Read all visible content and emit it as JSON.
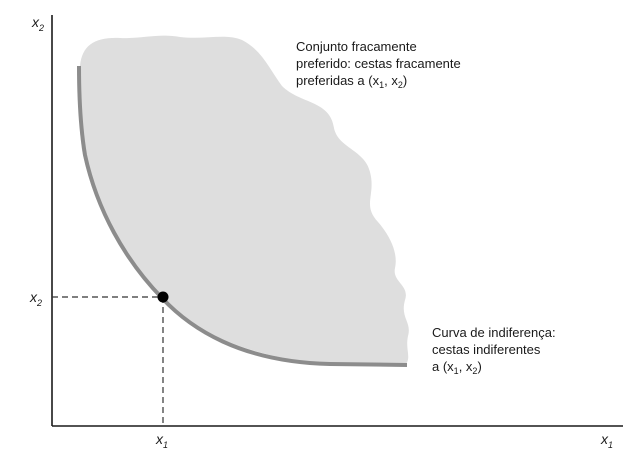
{
  "axes": {
    "y_name": "x",
    "y_sub": "2",
    "x_name": "x",
    "x_sub": "1"
  },
  "ticks": {
    "y_name": "x",
    "y_sub": "2",
    "x_name": "x",
    "x_sub": "1"
  },
  "preferred_set": {
    "line1": "Conjunto fracamente",
    "line2": "preferido: cestas fracamente",
    "line3_pre": "preferidas a (x",
    "line3_sub1": "1",
    "line3_mid": ", x",
    "line3_sub2": "2",
    "line3_post": ")"
  },
  "indifference_curve": {
    "line1": "Curva de indiferença:",
    "line2": "cestas indiferentes",
    "line3_pre": "a (x",
    "line3_sub1": "1",
    "line3_mid": ", x",
    "line3_sub2": "2",
    "line3_post": ")"
  },
  "colors": {
    "shaded_region": "#dedede",
    "curve": "#8c8c8c",
    "axes": "#1a1a1a",
    "point": "#000000",
    "dashed": "#333333"
  }
}
